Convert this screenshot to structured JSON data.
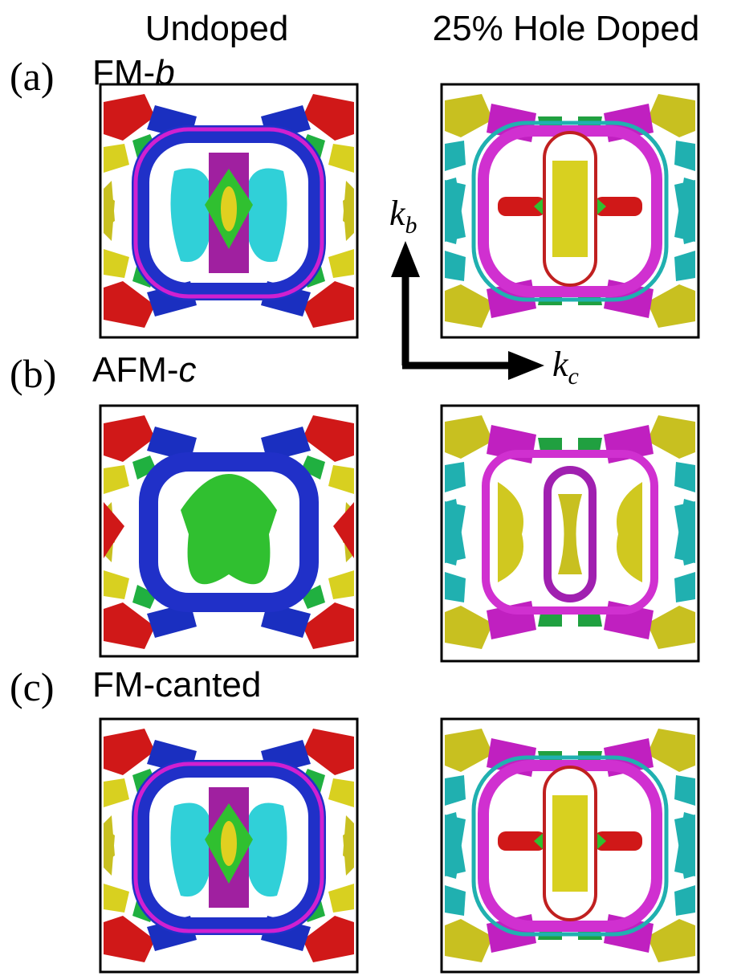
{
  "columns": [
    "Undoped",
    "25% Hole Doped"
  ],
  "rows": [
    {
      "tag": "(a)",
      "label": [
        "FM-",
        "b"
      ]
    },
    {
      "tag": "(b)",
      "label": [
        "AFM-",
        "c"
      ]
    },
    {
      "tag": "(c)",
      "label": [
        "FM-canted"
      ]
    }
  ],
  "axes": {
    "vertical": [
      "k",
      "b"
    ],
    "horizontal": [
      "k",
      "c"
    ]
  }
}
